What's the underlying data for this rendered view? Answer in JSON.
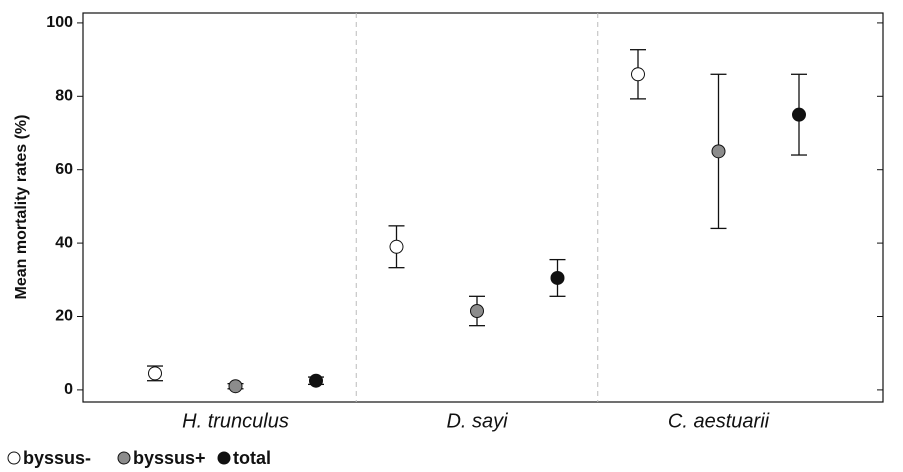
{
  "chart_data": {
    "type": "errorbar-dot",
    "y_label": "Mean mortality rates (%)",
    "categories": [
      "H. trunculus",
      "D. sayi",
      "C. aestuarii"
    ],
    "series": [
      {
        "name": "byssus-",
        "color": "#ffffff",
        "values": [
          4.5,
          39,
          86
        ],
        "errors": [
          2,
          5.7,
          6.7
        ]
      },
      {
        "name": "byssus+",
        "color": "#8c8c8c",
        "values": [
          1,
          21.5,
          65
        ],
        "errors": [
          0.7,
          4,
          21
        ]
      },
      {
        "name": "total",
        "color": "#111111",
        "values": [
          2.5,
          30.5,
          75
        ],
        "errors": [
          1,
          5,
          11
        ]
      }
    ],
    "ylim": [
      -3.3,
      102.7
    ],
    "yticks": [
      0,
      20,
      40,
      60,
      80,
      100
    ],
    "separators": true
  }
}
